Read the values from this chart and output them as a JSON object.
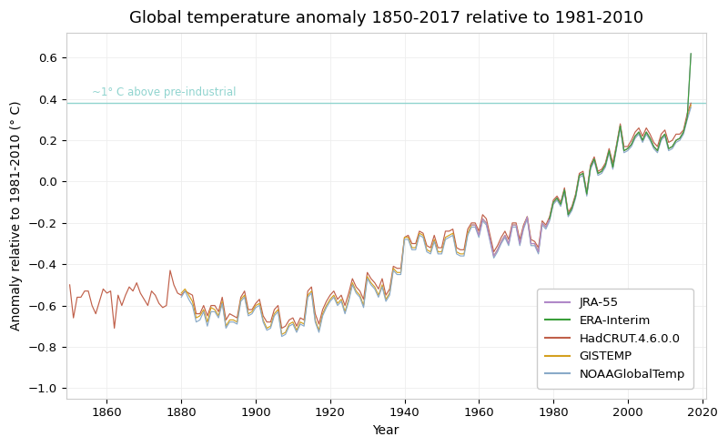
{
  "title": "Global temperature anomaly 1850-2017 relative to 1981-2010",
  "xlabel": "Year",
  "ylabel": "Anomaly relative to 1981-2010 (° C)",
  "xlim": [
    1849,
    2021
  ],
  "ylim": [
    -1.05,
    0.72
  ],
  "yticks": [
    -1.0,
    -0.8,
    -0.6,
    -0.4,
    -0.2,
    0.0,
    0.2,
    0.4,
    0.6
  ],
  "xticks": [
    1860,
    1880,
    1900,
    1920,
    1940,
    1960,
    1980,
    2000,
    2020
  ],
  "reference_line_y": 0.38,
  "reference_line_label": "~1° C above pre-industrial",
  "reference_line_color": "#90d4cf",
  "series": [
    {
      "name": "JRA-55",
      "color": "#b088c8",
      "start_year": 1958
    },
    {
      "name": "ERA-Interim",
      "color": "#3a9e3a",
      "start_year": 1979
    },
    {
      "name": "HadCRUT.4.6.0.0",
      "color": "#c0604a",
      "start_year": 1850
    },
    {
      "name": "GISTEMP",
      "color": "#d4a020",
      "start_year": 1880
    },
    {
      "name": "NOAAGlobalTemp",
      "color": "#8aaac8",
      "start_year": 1880
    }
  ],
  "background_color": "#ffffff",
  "title_fontsize": 13,
  "label_fontsize": 10,
  "tick_fontsize": 9.5,
  "legend_fontsize": 9.5,
  "linewidth": 0.85,
  "hadcrut_years": [
    1850,
    1851,
    1852,
    1853,
    1854,
    1855,
    1856,
    1857,
    1858,
    1859,
    1860,
    1861,
    1862,
    1863,
    1864,
    1865,
    1866,
    1867,
    1868,
    1869,
    1870,
    1871,
    1872,
    1873,
    1874,
    1875,
    1876,
    1877,
    1878,
    1879,
    1880,
    1881,
    1882,
    1883,
    1884,
    1885,
    1886,
    1887,
    1888,
    1889,
    1890,
    1891,
    1892,
    1893,
    1894,
    1895,
    1896,
    1897,
    1898,
    1899,
    1900,
    1901,
    1902,
    1903,
    1904,
    1905,
    1906,
    1907,
    1908,
    1909,
    1910,
    1911,
    1912,
    1913,
    1914,
    1915,
    1916,
    1917,
    1918,
    1919,
    1920,
    1921,
    1922,
    1923,
    1924,
    1925,
    1926,
    1927,
    1928,
    1929,
    1930,
    1931,
    1932,
    1933,
    1934,
    1935,
    1936,
    1937,
    1938,
    1939,
    1940,
    1941,
    1942,
    1943,
    1944,
    1945,
    1946,
    1947,
    1948,
    1949,
    1950,
    1951,
    1952,
    1953,
    1954,
    1955,
    1956,
    1957,
    1958,
    1959,
    1960,
    1961,
    1962,
    1963,
    1964,
    1965,
    1966,
    1967,
    1968,
    1969,
    1970,
    1971,
    1972,
    1973,
    1974,
    1975,
    1976,
    1977,
    1978,
    1979,
    1980,
    1981,
    1982,
    1983,
    1984,
    1985,
    1986,
    1987,
    1988,
    1989,
    1990,
    1991,
    1992,
    1993,
    1994,
    1995,
    1996,
    1997,
    1998,
    1999,
    2000,
    2001,
    2002,
    2003,
    2004,
    2005,
    2006,
    2007,
    2008,
    2009,
    2010,
    2011,
    2012,
    2013,
    2014,
    2015,
    2016,
    2017
  ],
  "hadcrut_vals": [
    -0.5,
    -0.66,
    -0.56,
    -0.56,
    -0.53,
    -0.53,
    -0.6,
    -0.64,
    -0.58,
    -0.52,
    -0.54,
    -0.53,
    -0.71,
    -0.55,
    -0.6,
    -0.55,
    -0.51,
    -0.53,
    -0.49,
    -0.54,
    -0.57,
    -0.6,
    -0.53,
    -0.55,
    -0.59,
    -0.61,
    -0.6,
    -0.43,
    -0.5,
    -0.54,
    -0.55,
    -0.53,
    -0.54,
    -0.55,
    -0.64,
    -0.64,
    -0.6,
    -0.65,
    -0.6,
    -0.6,
    -0.63,
    -0.56,
    -0.67,
    -0.64,
    -0.65,
    -0.66,
    -0.56,
    -0.53,
    -0.62,
    -0.62,
    -0.59,
    -0.57,
    -0.65,
    -0.68,
    -0.68,
    -0.62,
    -0.6,
    -0.71,
    -0.7,
    -0.67,
    -0.66,
    -0.7,
    -0.66,
    -0.67,
    -0.53,
    -0.51,
    -0.64,
    -0.69,
    -0.62,
    -0.58,
    -0.55,
    -0.53,
    -0.57,
    -0.55,
    -0.6,
    -0.54,
    -0.47,
    -0.51,
    -0.53,
    -0.57,
    -0.44,
    -0.47,
    -0.49,
    -0.52,
    -0.47,
    -0.55,
    -0.52,
    -0.41,
    -0.42,
    -0.42,
    -0.27,
    -0.26,
    -0.3,
    -0.3,
    -0.24,
    -0.25,
    -0.31,
    -0.32,
    -0.26,
    -0.32,
    -0.32,
    -0.24,
    -0.24,
    -0.23,
    -0.32,
    -0.33,
    -0.33,
    -0.23,
    -0.2,
    -0.2,
    -0.24,
    -0.16,
    -0.18,
    -0.26,
    -0.34,
    -0.31,
    -0.27,
    -0.24,
    -0.28,
    -0.2,
    -0.2,
    -0.28,
    -0.21,
    -0.17,
    -0.28,
    -0.29,
    -0.32,
    -0.19,
    -0.21,
    -0.17,
    -0.09,
    -0.07,
    -0.1,
    -0.03,
    -0.15,
    -0.12,
    -0.06,
    0.04,
    0.05,
    -0.05,
    0.08,
    0.12,
    0.05,
    0.06,
    0.09,
    0.16,
    0.09,
    0.18,
    0.28,
    0.17,
    0.17,
    0.2,
    0.24,
    0.26,
    0.22,
    0.26,
    0.23,
    0.19,
    0.17,
    0.23,
    0.25,
    0.19,
    0.2,
    0.23,
    0.23,
    0.25,
    0.33,
    0.38
  ],
  "gistemp_years": [
    1880,
    1881,
    1882,
    1883,
    1884,
    1885,
    1886,
    1887,
    1888,
    1889,
    1890,
    1891,
    1892,
    1893,
    1894,
    1895,
    1896,
    1897,
    1898,
    1899,
    1900,
    1901,
    1902,
    1903,
    1904,
    1905,
    1906,
    1907,
    1908,
    1909,
    1910,
    1911,
    1912,
    1913,
    1914,
    1915,
    1916,
    1917,
    1918,
    1919,
    1920,
    1921,
    1922,
    1923,
    1924,
    1925,
    1926,
    1927,
    1928,
    1929,
    1930,
    1931,
    1932,
    1933,
    1934,
    1935,
    1936,
    1937,
    1938,
    1939,
    1940,
    1941,
    1942,
    1943,
    1944,
    1945,
    1946,
    1947,
    1948,
    1949,
    1950,
    1951,
    1952,
    1953,
    1954,
    1955,
    1956,
    1957,
    1958,
    1959,
    1960,
    1961,
    1962,
    1963,
    1964,
    1965,
    1966,
    1967,
    1968,
    1969,
    1970,
    1971,
    1972,
    1973,
    1974,
    1975,
    1976,
    1977,
    1978,
    1979,
    1980,
    1981,
    1982,
    1983,
    1984,
    1985,
    1986,
    1987,
    1988,
    1989,
    1990,
    1991,
    1992,
    1993,
    1994,
    1995,
    1996,
    1997,
    1998,
    1999,
    2000,
    2001,
    2002,
    2003,
    2004,
    2005,
    2006,
    2007,
    2008,
    2009,
    2010,
    2011,
    2012,
    2013,
    2014,
    2015,
    2016,
    2017
  ],
  "gistemp_vals": [
    -0.54,
    -0.52,
    -0.55,
    -0.58,
    -0.66,
    -0.65,
    -0.62,
    -0.68,
    -0.61,
    -0.62,
    -0.65,
    -0.58,
    -0.7,
    -0.67,
    -0.67,
    -0.68,
    -0.57,
    -0.55,
    -0.64,
    -0.63,
    -0.6,
    -0.59,
    -0.67,
    -0.71,
    -0.7,
    -0.64,
    -0.62,
    -0.74,
    -0.73,
    -0.69,
    -0.68,
    -0.72,
    -0.68,
    -0.69,
    -0.55,
    -0.53,
    -0.67,
    -0.72,
    -0.64,
    -0.6,
    -0.57,
    -0.55,
    -0.59,
    -0.57,
    -0.63,
    -0.57,
    -0.49,
    -0.53,
    -0.55,
    -0.6,
    -0.46,
    -0.49,
    -0.51,
    -0.55,
    -0.5,
    -0.57,
    -0.54,
    -0.42,
    -0.44,
    -0.44,
    -0.27,
    -0.27,
    -0.32,
    -0.32,
    -0.25,
    -0.26,
    -0.33,
    -0.34,
    -0.28,
    -0.34,
    -0.34,
    -0.27,
    -0.26,
    -0.25,
    -0.34,
    -0.35,
    -0.35,
    -0.25,
    -0.21,
    -0.21,
    -0.26,
    -0.18,
    -0.2,
    -0.28,
    -0.36,
    -0.33,
    -0.29,
    -0.26,
    -0.3,
    -0.21,
    -0.21,
    -0.3,
    -0.22,
    -0.17,
    -0.3,
    -0.3,
    -0.34,
    -0.2,
    -0.22,
    -0.18,
    -0.1,
    -0.08,
    -0.11,
    -0.04,
    -0.16,
    -0.13,
    -0.07,
    0.03,
    0.04,
    -0.06,
    0.07,
    0.11,
    0.04,
    0.05,
    0.08,
    0.15,
    0.07,
    0.17,
    0.27,
    0.15,
    0.16,
    0.18,
    0.22,
    0.24,
    0.2,
    0.24,
    0.21,
    0.17,
    0.15,
    0.21,
    0.23,
    0.16,
    0.17,
    0.2,
    0.21,
    0.24,
    0.31,
    0.37
  ],
  "noaa_years": [
    1880,
    1881,
    1882,
    1883,
    1884,
    1885,
    1886,
    1887,
    1888,
    1889,
    1890,
    1891,
    1892,
    1893,
    1894,
    1895,
    1896,
    1897,
    1898,
    1899,
    1900,
    1901,
    1902,
    1903,
    1904,
    1905,
    1906,
    1907,
    1908,
    1909,
    1910,
    1911,
    1912,
    1913,
    1914,
    1915,
    1916,
    1917,
    1918,
    1919,
    1920,
    1921,
    1922,
    1923,
    1924,
    1925,
    1926,
    1927,
    1928,
    1929,
    1930,
    1931,
    1932,
    1933,
    1934,
    1935,
    1936,
    1937,
    1938,
    1939,
    1940,
    1941,
    1942,
    1943,
    1944,
    1945,
    1946,
    1947,
    1948,
    1949,
    1950,
    1951,
    1952,
    1953,
    1954,
    1955,
    1956,
    1957,
    1958,
    1959,
    1960,
    1961,
    1962,
    1963,
    1964,
    1965,
    1966,
    1967,
    1968,
    1969,
    1970,
    1971,
    1972,
    1973,
    1974,
    1975,
    1976,
    1977,
    1978,
    1979,
    1980,
    1981,
    1982,
    1983,
    1984,
    1985,
    1986,
    1987,
    1988,
    1989,
    1990,
    1991,
    1992,
    1993,
    1994,
    1995,
    1996,
    1997,
    1998,
    1999,
    2000,
    2001,
    2002,
    2003,
    2004,
    2005,
    2006,
    2007,
    2008,
    2009,
    2010,
    2011,
    2012,
    2013,
    2014,
    2015,
    2016,
    2017
  ],
  "noaa_vals": [
    -0.56,
    -0.53,
    -0.57,
    -0.6,
    -0.68,
    -0.67,
    -0.63,
    -0.7,
    -0.63,
    -0.63,
    -0.66,
    -0.59,
    -0.71,
    -0.68,
    -0.68,
    -0.69,
    -0.58,
    -0.56,
    -0.65,
    -0.64,
    -0.61,
    -0.6,
    -0.68,
    -0.72,
    -0.71,
    -0.65,
    -0.63,
    -0.75,
    -0.74,
    -0.7,
    -0.69,
    -0.73,
    -0.69,
    -0.7,
    -0.56,
    -0.54,
    -0.68,
    -0.73,
    -0.65,
    -0.61,
    -0.58,
    -0.56,
    -0.6,
    -0.58,
    -0.64,
    -0.58,
    -0.5,
    -0.54,
    -0.56,
    -0.61,
    -0.47,
    -0.5,
    -0.52,
    -0.56,
    -0.51,
    -0.58,
    -0.55,
    -0.43,
    -0.45,
    -0.45,
    -0.28,
    -0.28,
    -0.33,
    -0.33,
    -0.26,
    -0.27,
    -0.34,
    -0.35,
    -0.29,
    -0.35,
    -0.35,
    -0.28,
    -0.27,
    -0.26,
    -0.35,
    -0.36,
    -0.36,
    -0.26,
    -0.22,
    -0.22,
    -0.27,
    -0.19,
    -0.21,
    -0.29,
    -0.37,
    -0.34,
    -0.3,
    -0.27,
    -0.31,
    -0.22,
    -0.22,
    -0.31,
    -0.23,
    -0.18,
    -0.31,
    -0.31,
    -0.35,
    -0.21,
    -0.23,
    -0.19,
    -0.11,
    -0.09,
    -0.12,
    -0.05,
    -0.17,
    -0.14,
    -0.08,
    0.02,
    0.03,
    -0.07,
    0.06,
    0.1,
    0.03,
    0.04,
    0.07,
    0.14,
    0.06,
    0.16,
    0.26,
    0.14,
    0.15,
    0.17,
    0.21,
    0.23,
    0.19,
    0.23,
    0.2,
    0.16,
    0.14,
    0.2,
    0.22,
    0.15,
    0.16,
    0.19,
    0.2,
    0.23,
    0.3,
    0.36
  ],
  "jra55_years": [
    1958,
    1959,
    1960,
    1961,
    1962,
    1963,
    1964,
    1965,
    1966,
    1967,
    1968,
    1969,
    1970,
    1971,
    1972,
    1973,
    1974,
    1975,
    1976,
    1977,
    1978,
    1979,
    1980,
    1981,
    1982,
    1983,
    1984,
    1985,
    1986,
    1987,
    1988,
    1989,
    1990,
    1991,
    1992,
    1993,
    1994,
    1995,
    1996,
    1997,
    1998,
    1999,
    2000,
    2001,
    2002,
    2003,
    2004,
    2005,
    2006,
    2007,
    2008,
    2009,
    2010,
    2011,
    2012,
    2013,
    2014,
    2015,
    2016,
    2017
  ],
  "jra55_vals": [
    -0.21,
    -0.21,
    -0.26,
    -0.18,
    -0.2,
    -0.28,
    -0.36,
    -0.33,
    -0.29,
    -0.26,
    -0.3,
    -0.21,
    -0.21,
    -0.3,
    -0.22,
    -0.17,
    -0.3,
    -0.3,
    -0.34,
    -0.2,
    -0.22,
    -0.18,
    -0.1,
    -0.08,
    -0.11,
    -0.04,
    -0.16,
    -0.13,
    -0.07,
    0.03,
    0.04,
    -0.06,
    0.07,
    0.11,
    0.04,
    0.05,
    0.08,
    0.15,
    0.07,
    0.17,
    0.27,
    0.15,
    0.16,
    0.18,
    0.22,
    0.24,
    0.2,
    0.24,
    0.21,
    0.17,
    0.15,
    0.21,
    0.23,
    0.16,
    0.17,
    0.2,
    0.21,
    0.24,
    0.31,
    0.62
  ],
  "era_years": [
    1979,
    1980,
    1981,
    1982,
    1983,
    1984,
    1985,
    1986,
    1987,
    1988,
    1989,
    1990,
    1991,
    1992,
    1993,
    1994,
    1995,
    1996,
    1997,
    1998,
    1999,
    2000,
    2001,
    2002,
    2003,
    2004,
    2005,
    2006,
    2007,
    2008,
    2009,
    2010,
    2011,
    2012,
    2013,
    2014,
    2015,
    2016,
    2017
  ],
  "era_vals": [
    -0.18,
    -0.1,
    -0.08,
    -0.11,
    -0.04,
    -0.16,
    -0.13,
    -0.07,
    0.03,
    0.04,
    -0.06,
    0.07,
    0.11,
    0.04,
    0.05,
    0.08,
    0.15,
    0.07,
    0.17,
    0.27,
    0.15,
    0.16,
    0.18,
    0.22,
    0.24,
    0.2,
    0.24,
    0.21,
    0.17,
    0.15,
    0.21,
    0.23,
    0.16,
    0.17,
    0.2,
    0.21,
    0.24,
    0.31,
    0.62
  ]
}
